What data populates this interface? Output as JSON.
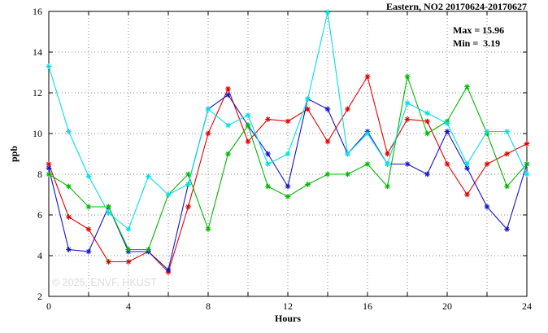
{
  "chart_data": {
    "type": "line",
    "title": "Eastern, NO2 20170624-20170627",
    "xlabel": "Hours",
    "ylabel": "ppb",
    "xlim": [
      0,
      24
    ],
    "ylim": [
      2,
      16
    ],
    "x_grid_step": 2,
    "y_grid_step": 2,
    "xtick_labels": [
      0,
      4,
      8,
      12,
      16,
      20,
      24
    ],
    "ytick_labels": [
      2,
      4,
      6,
      8,
      10,
      12,
      14,
      16
    ],
    "grid": true,
    "legend": "none",
    "marker": "asterisk",
    "annotations": {
      "max_label": "Max = 15.96",
      "min_label": "Min =  3.19"
    },
    "watermark": "© 2025, ENVF, HKUST",
    "x": [
      0,
      1,
      2,
      3,
      4,
      5,
      6,
      7,
      8,
      9,
      10,
      11,
      12,
      13,
      14,
      15,
      16,
      17,
      18,
      19,
      20,
      21,
      22,
      23,
      24
    ],
    "series": [
      {
        "name": "red",
        "color": "#e60000",
        "values": [
          8.5,
          5.9,
          5.3,
          3.7,
          3.7,
          4.2,
          3.19,
          6.4,
          10.0,
          12.2,
          9.6,
          10.7,
          10.6,
          11.2,
          9.6,
          11.2,
          12.8,
          9.0,
          10.7,
          10.6,
          8.5,
          7.0,
          8.5,
          9.0,
          9.5
        ]
      },
      {
        "name": "blue",
        "color": "#1414cc",
        "values": [
          8.3,
          4.3,
          4.2,
          6.4,
          4.2,
          4.2,
          3.3,
          7.5,
          11.2,
          11.9,
          10.4,
          9.0,
          7.4,
          11.7,
          11.2,
          9.0,
          10.1,
          8.5,
          8.5,
          8.0,
          10.1,
          8.3,
          6.4,
          5.3,
          8.5
        ]
      },
      {
        "name": "green",
        "color": "#00b800",
        "values": [
          8.0,
          7.4,
          6.4,
          6.4,
          4.3,
          4.3,
          7.0,
          8.0,
          5.3,
          9.0,
          10.4,
          7.4,
          6.9,
          7.5,
          8.0,
          8.0,
          8.5,
          7.4,
          12.8,
          10.0,
          10.6,
          12.3,
          10.0,
          7.4,
          8.5
        ]
      },
      {
        "name": "cyan",
        "color": "#00e0e6",
        "values": [
          13.3,
          10.1,
          7.9,
          6.1,
          5.3,
          7.9,
          7.0,
          7.5,
          11.2,
          10.4,
          10.9,
          8.5,
          9.0,
          11.7,
          15.96,
          9.0,
          10.0,
          8.5,
          11.5,
          11.0,
          10.5,
          8.5,
          10.1,
          10.1,
          8.0
        ]
      }
    ]
  }
}
